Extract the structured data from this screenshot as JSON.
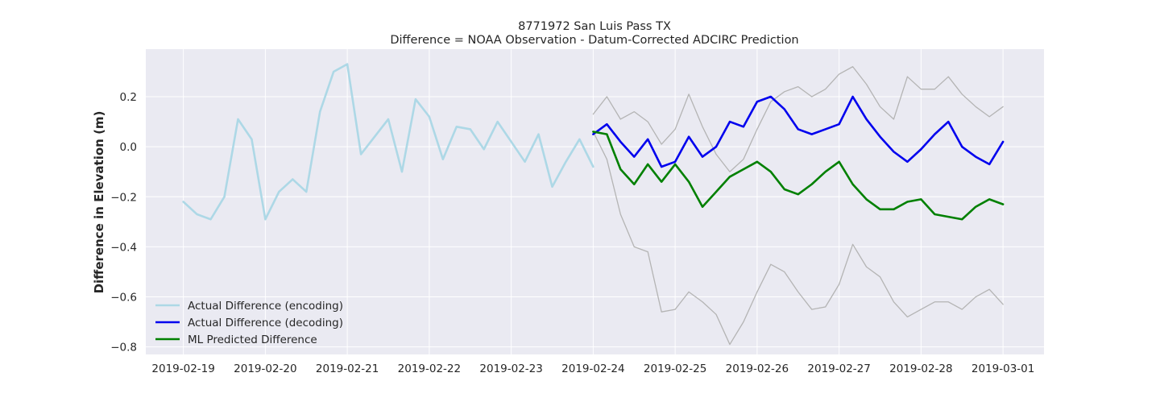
{
  "chart_data": {
    "type": "line",
    "title": "8771972 San Luis Pass TX",
    "subtitle": "Difference = NOAA Observation - Datum-Corrected ADCIRC Prediction",
    "xlabel": "",
    "ylabel": "Difference in Elevation (m)",
    "xlim": [
      "2019-02-18T13:00",
      "2019-03-01T12:00"
    ],
    "ylim": [
      -0.83,
      0.39
    ],
    "x_ticks": [
      "2019-02-19",
      "2019-02-20",
      "2019-02-21",
      "2019-02-22",
      "2019-02-23",
      "2019-02-24",
      "2019-02-25",
      "2019-02-26",
      "2019-02-27",
      "2019-02-28",
      "2019-03-01"
    ],
    "y_ticks": [
      0.2,
      0.0,
      -0.2,
      -0.4,
      -0.6,
      -0.8
    ],
    "y_tick_labels": [
      "0.2",
      "0.0",
      "−0.2",
      "−0.4",
      "−0.6",
      "−0.8"
    ],
    "grid": true,
    "background": "#eaeaf2",
    "legend_position": "lower-left",
    "series": [
      {
        "name": "Actual Difference (encoding)",
        "color": "#add8e6",
        "role": "line",
        "x": [
          "2019-02-19T00:00",
          "2019-02-19T04:00",
          "2019-02-19T08:00",
          "2019-02-19T12:00",
          "2019-02-19T16:00",
          "2019-02-19T20:00",
          "2019-02-20T00:00",
          "2019-02-20T04:00",
          "2019-02-20T08:00",
          "2019-02-20T12:00",
          "2019-02-20T16:00",
          "2019-02-20T20:00",
          "2019-02-21T00:00",
          "2019-02-21T04:00",
          "2019-02-21T08:00",
          "2019-02-21T12:00",
          "2019-02-21T16:00",
          "2019-02-21T20:00",
          "2019-02-22T00:00",
          "2019-02-22T04:00",
          "2019-02-22T08:00",
          "2019-02-22T12:00",
          "2019-02-22T16:00",
          "2019-02-22T20:00",
          "2019-02-23T00:00",
          "2019-02-23T04:00",
          "2019-02-23T08:00",
          "2019-02-23T12:00",
          "2019-02-23T16:00",
          "2019-02-23T20:00",
          "2019-02-24T00:00"
        ],
        "values": [
          -0.22,
          -0.27,
          -0.29,
          -0.2,
          0.11,
          0.03,
          -0.29,
          -0.18,
          -0.13,
          -0.18,
          0.14,
          0.3,
          0.33,
          -0.03,
          0.04,
          0.11,
          -0.1,
          0.19,
          0.12,
          -0.05,
          0.08,
          0.07,
          -0.01,
          0.1,
          0.02,
          -0.06,
          0.05,
          -0.16,
          -0.06,
          0.03,
          -0.08
        ]
      },
      {
        "name": "Actual Difference (decoding)",
        "color": "#0000ee",
        "role": "line",
        "x": [
          "2019-02-24T00:00",
          "2019-02-24T04:00",
          "2019-02-24T08:00",
          "2019-02-24T12:00",
          "2019-02-24T16:00",
          "2019-02-24T20:00",
          "2019-02-25T00:00",
          "2019-02-25T04:00",
          "2019-02-25T08:00",
          "2019-02-25T12:00",
          "2019-02-25T16:00",
          "2019-02-25T20:00",
          "2019-02-26T00:00",
          "2019-02-26T04:00",
          "2019-02-26T08:00",
          "2019-02-26T12:00",
          "2019-02-26T16:00",
          "2019-02-26T20:00",
          "2019-02-27T00:00",
          "2019-02-27T04:00",
          "2019-02-27T08:00",
          "2019-02-27T12:00",
          "2019-02-27T16:00",
          "2019-02-27T20:00",
          "2019-02-28T00:00",
          "2019-02-28T04:00",
          "2019-02-28T08:00",
          "2019-02-28T12:00",
          "2019-02-28T16:00",
          "2019-02-28T20:00",
          "2019-03-01T00:00"
        ],
        "values": [
          0.05,
          0.09,
          0.02,
          -0.04,
          0.03,
          -0.08,
          -0.06,
          0.04,
          -0.04,
          0.0,
          0.1,
          0.08,
          0.18,
          0.2,
          0.15,
          0.07,
          0.05,
          0.07,
          0.09,
          0.2,
          0.11,
          0.04,
          -0.02,
          -0.06,
          -0.01,
          0.05,
          0.1,
          0.0,
          -0.04,
          -0.07,
          0.02
        ]
      },
      {
        "name": "ML Predicted Difference",
        "color": "#008000",
        "role": "line",
        "x": [
          "2019-02-24T00:00",
          "2019-02-24T04:00",
          "2019-02-24T08:00",
          "2019-02-24T12:00",
          "2019-02-24T16:00",
          "2019-02-24T20:00",
          "2019-02-25T00:00",
          "2019-02-25T04:00",
          "2019-02-25T08:00",
          "2019-02-25T12:00",
          "2019-02-25T16:00",
          "2019-02-25T20:00",
          "2019-02-26T00:00",
          "2019-02-26T04:00",
          "2019-02-26T08:00",
          "2019-02-26T12:00",
          "2019-02-26T16:00",
          "2019-02-26T20:00",
          "2019-02-27T00:00",
          "2019-02-27T04:00",
          "2019-02-27T08:00",
          "2019-02-27T12:00",
          "2019-02-27T16:00",
          "2019-02-27T20:00",
          "2019-02-28T00:00",
          "2019-02-28T04:00",
          "2019-02-28T08:00",
          "2019-02-28T12:00",
          "2019-02-28T16:00",
          "2019-02-28T20:00",
          "2019-03-01T00:00"
        ],
        "values": [
          0.06,
          0.05,
          -0.09,
          -0.15,
          -0.07,
          -0.14,
          -0.07,
          -0.14,
          -0.24,
          -0.18,
          -0.12,
          -0.09,
          -0.06,
          -0.1,
          -0.17,
          -0.19,
          -0.15,
          -0.1,
          -0.06,
          -0.15,
          -0.21,
          -0.25,
          -0.25,
          -0.22,
          -0.21,
          -0.27,
          -0.28,
          -0.29,
          -0.24,
          -0.21,
          -0.23
        ]
      },
      {
        "name": "",
        "color": "#b4b4b4",
        "role": "band-upper",
        "x": [
          "2019-02-24T00:00",
          "2019-02-24T04:00",
          "2019-02-24T08:00",
          "2019-02-24T12:00",
          "2019-02-24T16:00",
          "2019-02-24T20:00",
          "2019-02-25T00:00",
          "2019-02-25T04:00",
          "2019-02-25T08:00",
          "2019-02-25T12:00",
          "2019-02-25T16:00",
          "2019-02-25T20:00",
          "2019-02-26T00:00",
          "2019-02-26T04:00",
          "2019-02-26T08:00",
          "2019-02-26T12:00",
          "2019-02-26T16:00",
          "2019-02-26T20:00",
          "2019-02-27T00:00",
          "2019-02-27T04:00",
          "2019-02-27T08:00",
          "2019-02-27T12:00",
          "2019-02-27T16:00",
          "2019-02-27T20:00",
          "2019-02-28T00:00",
          "2019-02-28T04:00",
          "2019-02-28T08:00",
          "2019-02-28T12:00",
          "2019-02-28T16:00",
          "2019-02-28T20:00",
          "2019-03-01T00:00"
        ],
        "values": [
          0.13,
          0.2,
          0.11,
          0.14,
          0.1,
          0.01,
          0.07,
          0.21,
          0.08,
          -0.03,
          -0.1,
          -0.05,
          0.07,
          0.18,
          0.22,
          0.24,
          0.2,
          0.23,
          0.29,
          0.32,
          0.25,
          0.16,
          0.11,
          0.28,
          0.23,
          0.23,
          0.28,
          0.21,
          0.16,
          0.12,
          0.16
        ]
      },
      {
        "name": "",
        "color": "#b4b4b4",
        "role": "band-lower",
        "x": [
          "2019-02-24T00:00",
          "2019-02-24T04:00",
          "2019-02-24T08:00",
          "2019-02-24T12:00",
          "2019-02-24T16:00",
          "2019-02-24T20:00",
          "2019-02-25T00:00",
          "2019-02-25T04:00",
          "2019-02-25T08:00",
          "2019-02-25T12:00",
          "2019-02-25T16:00",
          "2019-02-25T20:00",
          "2019-02-26T00:00",
          "2019-02-26T04:00",
          "2019-02-26T08:00",
          "2019-02-26T12:00",
          "2019-02-26T16:00",
          "2019-02-26T20:00",
          "2019-02-27T00:00",
          "2019-02-27T04:00",
          "2019-02-27T08:00",
          "2019-02-27T12:00",
          "2019-02-27T16:00",
          "2019-02-27T20:00",
          "2019-02-28T00:00",
          "2019-02-28T04:00",
          "2019-02-28T08:00",
          "2019-02-28T12:00",
          "2019-02-28T16:00",
          "2019-02-28T20:00",
          "2019-03-01T00:00"
        ],
        "values": [
          0.06,
          -0.05,
          -0.27,
          -0.4,
          -0.42,
          -0.66,
          -0.65,
          -0.58,
          -0.62,
          -0.67,
          -0.79,
          -0.7,
          -0.58,
          -0.47,
          -0.5,
          -0.58,
          -0.65,
          -0.64,
          -0.55,
          -0.39,
          -0.48,
          -0.52,
          -0.62,
          -0.68,
          -0.65,
          -0.62,
          -0.62,
          -0.65,
          -0.6,
          -0.57,
          -0.63
        ]
      }
    ]
  }
}
